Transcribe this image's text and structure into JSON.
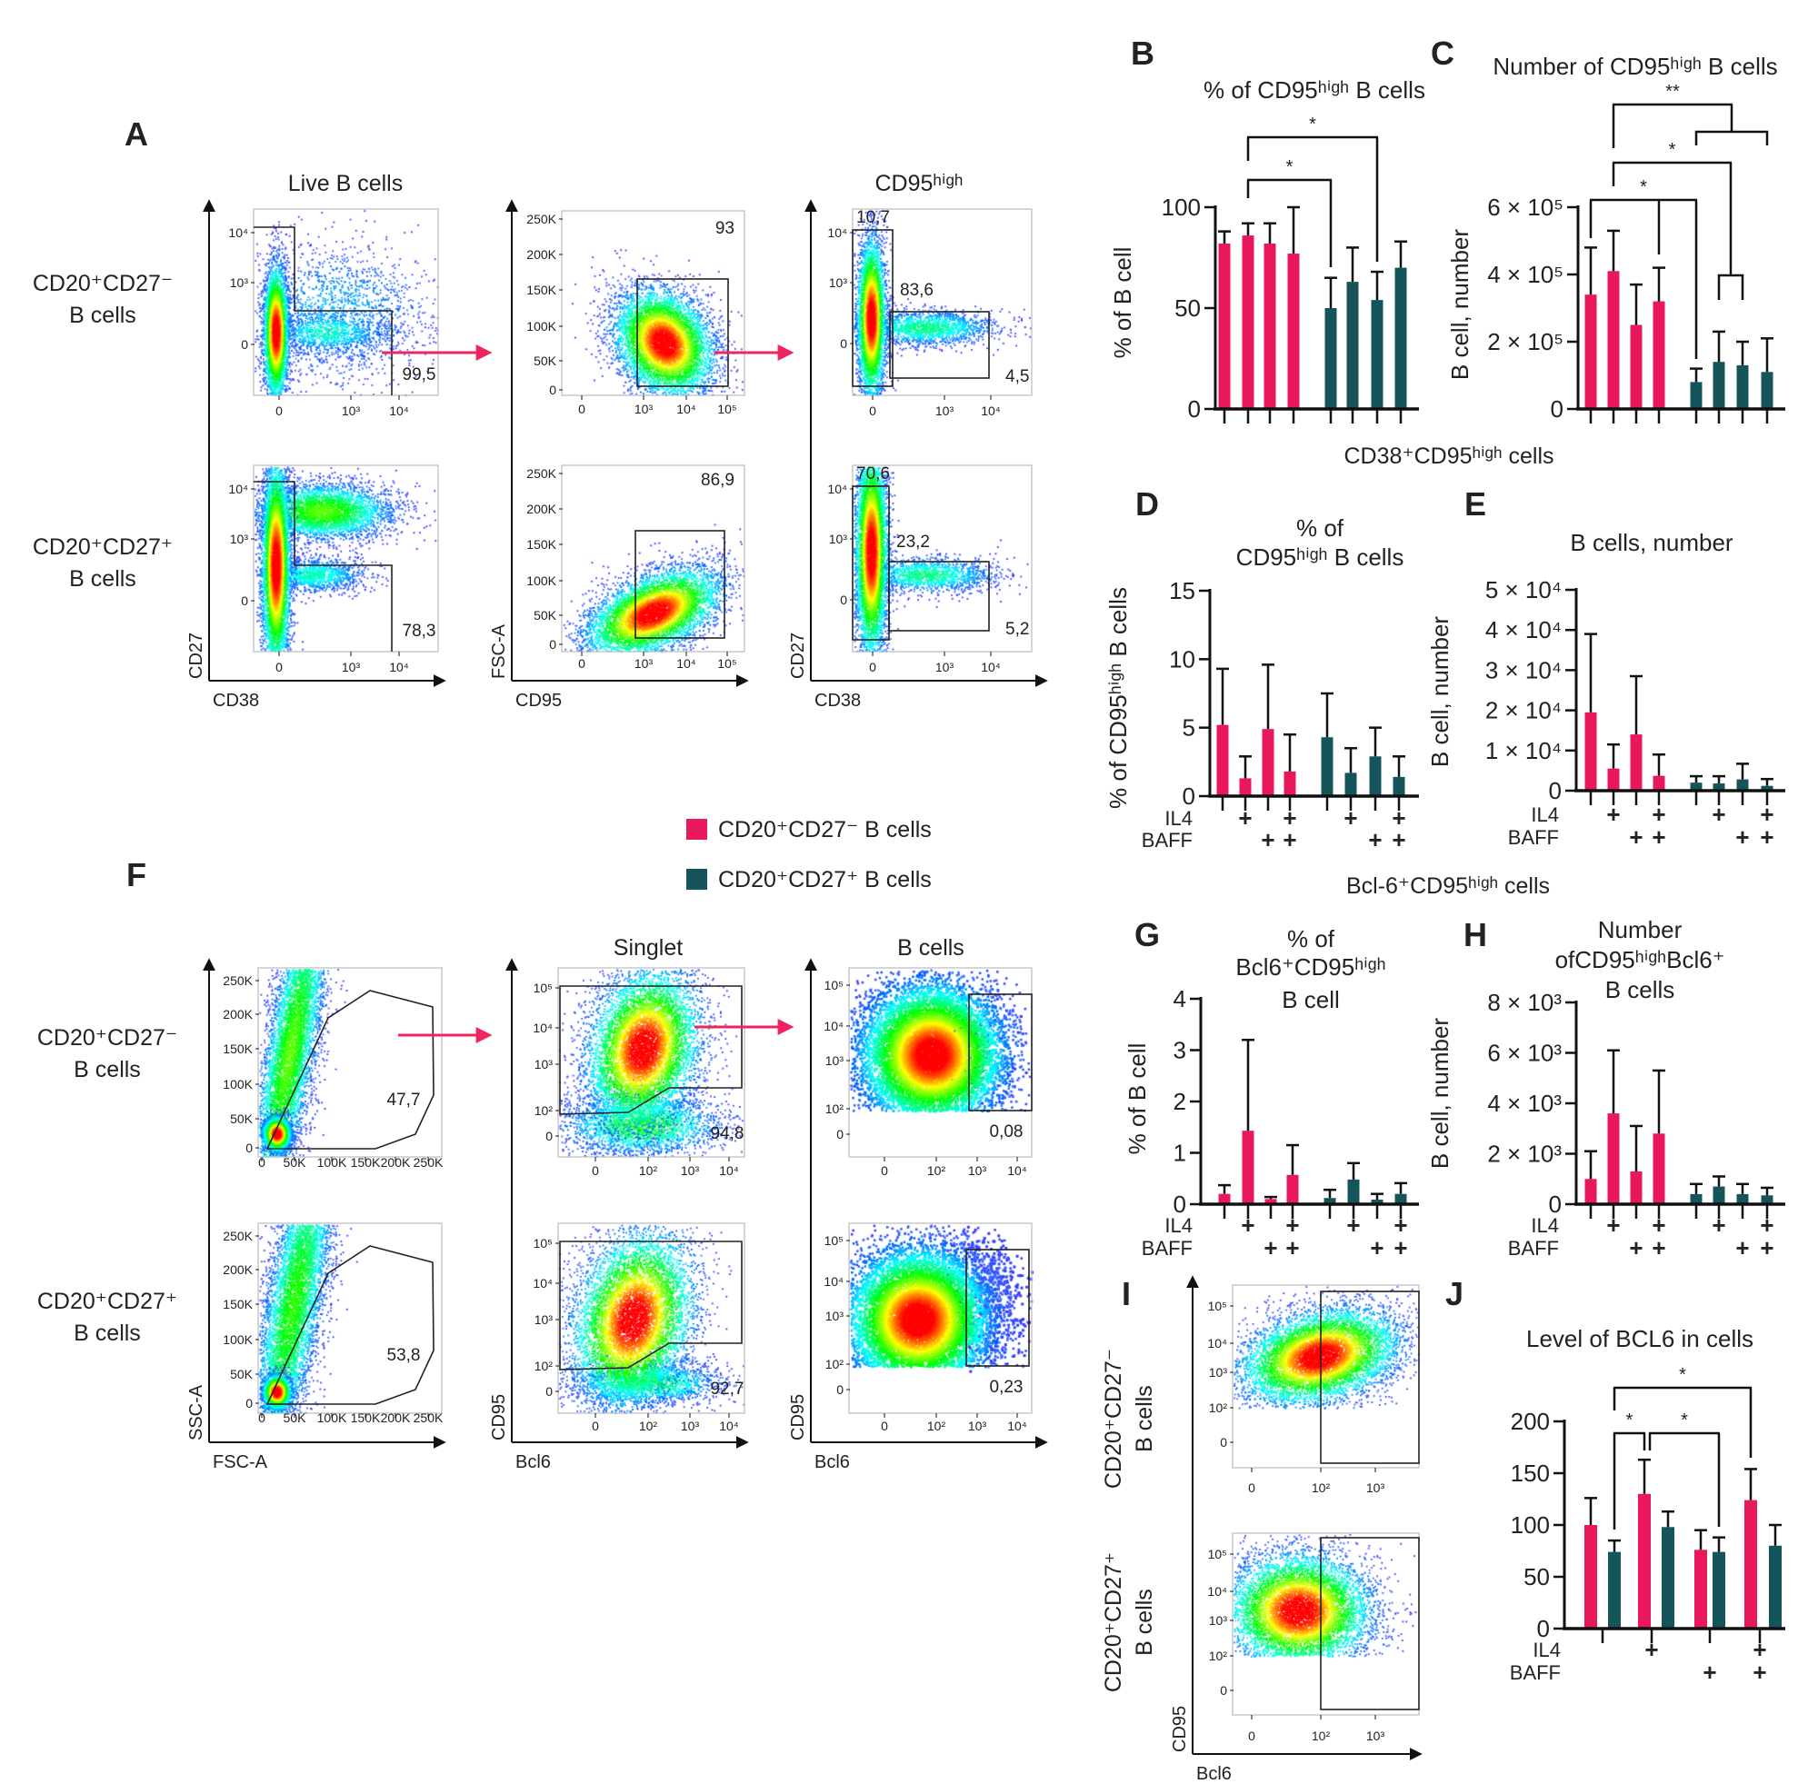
{
  "panel_labels": {
    "A": "A",
    "B": "B",
    "C": "C",
    "D": "D",
    "E": "E",
    "F": "F",
    "G": "G",
    "H": "H",
    "I": "I",
    "J": "J"
  },
  "legend": [
    {
      "label": "CD20⁺CD27⁻ B cells",
      "color": "#e8185a"
    },
    {
      "label": "CD20⁺CD27⁺ B cells",
      "color": "#14545a"
    }
  ],
  "section_titles": {
    "cd38": "CD38⁺CD95ʰⁱᵍʰ cells",
    "bcl6": "Bcl-6⁺CD95ʰⁱᵍʰ cells"
  },
  "panel_a": {
    "col_titles": [
      "Live B cells",
      "CD95ʰⁱᵍʰ"
    ],
    "row_labels": [
      [
        "CD20⁺CD27⁻",
        "B cells"
      ],
      [
        "CD20⁺CD27⁺",
        "B cells"
      ]
    ],
    "axis_labels": [
      {
        "x": "CD38",
        "y": "CD27"
      },
      {
        "x": "CD95",
        "y": "FSC-A"
      },
      {
        "x": "CD38",
        "y": "CD27"
      }
    ],
    "tick_labels": [
      {
        "x": [
          "0",
          "10³",
          "10⁴"
        ],
        "y": [
          "10⁴",
          "10³",
          "0"
        ]
      },
      {
        "x": [
          "0",
          "10³",
          "10⁴",
          "10⁵"
        ],
        "y": [
          "250K",
          "200K",
          "150K",
          "100K",
          "50K",
          "0"
        ]
      },
      {
        "x": [
          "0",
          "10³",
          "10⁴"
        ],
        "y": [
          "10⁴",
          "10³",
          "0"
        ]
      }
    ],
    "gate_values": [
      [
        [
          "99,5"
        ],
        [
          "93"
        ],
        [
          "10,7",
          "83,6",
          "4,5"
        ]
      ],
      [
        [
          "78,3"
        ],
        [
          "86,9"
        ],
        [
          "70,6",
          "23,2",
          "5,2"
        ]
      ]
    ]
  },
  "panel_f": {
    "col_titles": [
      "Singlet",
      "B cells"
    ],
    "row_labels": [
      [
        "CD20⁺CD27⁻",
        "B cells"
      ],
      [
        "CD20⁺CD27⁺",
        "B cells"
      ]
    ],
    "axis_labels": [
      {
        "x": "FSC-A",
        "y": "SSC-A"
      },
      {
        "x": "Bcl6",
        "y": "CD95"
      },
      {
        "x": "Bcl6",
        "y": "CD95"
      }
    ],
    "tick_labels": [
      {
        "x": [
          "0",
          "50K",
          "100K",
          "150K",
          "200K",
          "250K"
        ],
        "y": [
          "250K",
          "200K",
          "150K",
          "100K",
          "50K",
          "0"
        ]
      },
      {
        "x": [
          "0",
          "10²",
          "10³",
          "10⁴"
        ],
        "y": [
          "10⁵",
          "10⁴",
          "10³",
          "10²",
          "0"
        ]
      },
      {
        "x": [
          "0",
          "10²",
          "10³",
          "10⁴"
        ],
        "y": [
          "10⁵",
          "10⁴",
          "10³",
          "10²",
          "0"
        ]
      }
    ],
    "gate_values": [
      [
        [
          "47,7"
        ],
        [
          "94,8"
        ],
        [
          "0,08"
        ]
      ],
      [
        [
          "53,8"
        ],
        [
          "92,7"
        ],
        [
          "0,23"
        ]
      ]
    ]
  },
  "panel_i": {
    "row_labels": [
      [
        "CD20⁺CD27⁻",
        "B cells"
      ],
      [
        "CD20⁺CD27⁺",
        "B cells"
      ]
    ],
    "axis_labels": {
      "x": "Bcl6",
      "y": "CD95"
    },
    "tick_labels": {
      "x": [
        "0",
        "10²",
        "10³"
      ],
      "y": [
        "10⁵",
        "10⁴",
        "10³",
        "10²",
        "0"
      ]
    }
  },
  "chart_data": [
    {
      "panel": "B",
      "type": "bar",
      "title": [
        "% of CD95ʰⁱᵍʰ B cells"
      ],
      "ylabel": "% of B cell",
      "ylim": [
        0,
        100
      ],
      "yticks": [
        0,
        50,
        100
      ],
      "ytick_labels": [
        "0",
        "50",
        "100"
      ],
      "grouped_by": "cell_type",
      "show_conditions": false,
      "conditions": [
        {
          "IL4": false,
          "BAFF": false
        },
        {
          "IL4": true,
          "BAFF": false
        },
        {
          "IL4": false,
          "BAFF": true
        },
        {
          "IL4": true,
          "BAFF": true
        }
      ],
      "series": [
        {
          "name": "CD20⁺CD27⁻ B cells",
          "color": "#e8185a",
          "values": [
            82,
            86,
            82,
            77
          ],
          "error_upper": [
            88,
            92,
            92,
            100
          ]
        },
        {
          "name": "CD20⁺CD27⁺ B cells",
          "color": "#14545a",
          "values": [
            50,
            63,
            54,
            70
          ],
          "error_upper": [
            65,
            80,
            68,
            83
          ]
        }
      ],
      "significance": [
        {
          "label": "*"
        },
        {
          "label": "*"
        }
      ]
    },
    {
      "panel": "C",
      "type": "bar",
      "title": [
        "Number of CD95ʰⁱᵍʰ B cells"
      ],
      "ylabel": "B cell, number",
      "ylim": [
        0,
        600000
      ],
      "yticks": [
        0,
        200000,
        400000,
        600000
      ],
      "ytick_labels": [
        "0",
        "2 × 10⁵",
        "4 × 10⁵",
        "6 × 10⁵"
      ],
      "grouped_by": "cell_type",
      "show_conditions": false,
      "conditions": [
        {
          "IL4": false,
          "BAFF": false
        },
        {
          "IL4": true,
          "BAFF": false
        },
        {
          "IL4": false,
          "BAFF": true
        },
        {
          "IL4": true,
          "BAFF": true
        }
      ],
      "series": [
        {
          "name": "CD20⁺CD27⁻ B cells",
          "color": "#e8185a",
          "values": [
            340000,
            410000,
            250000,
            320000
          ],
          "error_upper": [
            480000,
            530000,
            370000,
            420000
          ]
        },
        {
          "name": "CD20⁺CD27⁺ B cells",
          "color": "#14545a",
          "values": [
            80000,
            140000,
            130000,
            110000
          ],
          "error_upper": [
            120000,
            230000,
            200000,
            210000
          ]
        }
      ],
      "significance": [
        {
          "label": "**"
        },
        {
          "label": "*"
        },
        {
          "label": "*"
        }
      ]
    },
    {
      "panel": "D",
      "type": "bar",
      "title": [
        "% of",
        "CD95ʰⁱᵍʰ B cells"
      ],
      "ylabel": "% of CD95ʰⁱᵍʰ B cells",
      "ylim": [
        0,
        15
      ],
      "yticks": [
        0,
        5,
        10,
        15
      ],
      "ytick_labels": [
        "0",
        "5",
        "10",
        "15"
      ],
      "grouped_by": "cell_type",
      "show_conditions": true,
      "condition_labels": [
        "IL4",
        "BAFF"
      ],
      "plus": "+",
      "conditions": [
        {
          "IL4": false,
          "BAFF": false
        },
        {
          "IL4": true,
          "BAFF": false
        },
        {
          "IL4": false,
          "BAFF": true
        },
        {
          "IL4": true,
          "BAFF": true
        }
      ],
      "series": [
        {
          "name": "CD20⁺CD27⁻ B cells",
          "color": "#e8185a",
          "values": [
            5.2,
            1.3,
            4.9,
            1.8
          ],
          "error_upper": [
            9.3,
            2.9,
            9.6,
            4.5
          ]
        },
        {
          "name": "CD20⁺CD27⁺ B cells",
          "color": "#14545a",
          "values": [
            4.3,
            1.7,
            2.9,
            1.4
          ],
          "error_upper": [
            7.5,
            3.5,
            5.0,
            2.9
          ]
        }
      ],
      "significance": []
    },
    {
      "panel": "E",
      "type": "bar",
      "title": [
        "B cells, number"
      ],
      "ylabel": "B cell, number",
      "ylim": [
        0,
        50000
      ],
      "yticks": [
        0,
        10000,
        20000,
        30000,
        40000,
        50000
      ],
      "ytick_labels": [
        "0",
        "1 × 10⁴",
        "2 × 10⁴",
        "3 × 10⁴",
        "4 × 10⁴",
        "5 × 10⁴"
      ],
      "grouped_by": "cell_type",
      "show_conditions": true,
      "condition_labels": [
        "IL4",
        "BAFF"
      ],
      "plus": "+",
      "conditions": [
        {
          "IL4": false,
          "BAFF": false
        },
        {
          "IL4": true,
          "BAFF": false
        },
        {
          "IL4": false,
          "BAFF": true
        },
        {
          "IL4": true,
          "BAFF": true
        }
      ],
      "series": [
        {
          "name": "CD20⁺CD27⁻ B cells",
          "color": "#e8185a",
          "values": [
            19500,
            5500,
            14000,
            3700
          ],
          "error_upper": [
            39000,
            11500,
            28500,
            9000
          ]
        },
        {
          "name": "CD20⁺CD27⁺ B cells",
          "color": "#14545a",
          "values": [
            2000,
            1800,
            2800,
            1200
          ],
          "error_upper": [
            3600,
            3600,
            6700,
            2900
          ]
        }
      ],
      "significance": []
    },
    {
      "panel": "G",
      "type": "bar",
      "title": [
        "% of",
        "Bcl6⁺CD95ʰⁱᵍʰ",
        "B cell"
      ],
      "ylabel": "% of B cell",
      "ylim": [
        0,
        4
      ],
      "yticks": [
        0,
        1,
        2,
        3,
        4
      ],
      "ytick_labels": [
        "0",
        "1",
        "2",
        "3",
        "4"
      ],
      "grouped_by": "cell_type",
      "show_conditions": true,
      "condition_labels": [
        "IL4",
        "BAFF"
      ],
      "plus": "+",
      "conditions": [
        {
          "IL4": false,
          "BAFF": false
        },
        {
          "IL4": true,
          "BAFF": false
        },
        {
          "IL4": false,
          "BAFF": true
        },
        {
          "IL4": true,
          "BAFF": true
        }
      ],
      "series": [
        {
          "name": "CD20⁺CD27⁻ B cells",
          "color": "#e8185a",
          "values": [
            0.2,
            1.43,
            0.1,
            0.57
          ],
          "error_upper": [
            0.37,
            3.2,
            0.14,
            1.15
          ]
        },
        {
          "name": "CD20⁺CD27⁺ B cells",
          "color": "#14545a",
          "values": [
            0.12,
            0.48,
            0.09,
            0.2
          ],
          "error_upper": [
            0.28,
            0.8,
            0.2,
            0.41
          ]
        }
      ],
      "significance": []
    },
    {
      "panel": "H",
      "type": "bar",
      "title": [
        "Number",
        "ofCD95ʰⁱᵍʰBcl6⁺",
        "B cells"
      ],
      "ylabel": "B cell, number",
      "ylim": [
        0,
        8000
      ],
      "yticks": [
        0,
        2000,
        4000,
        6000,
        8000
      ],
      "ytick_labels": [
        "0",
        "2 × 10³",
        "4 × 10³",
        "6 × 10³",
        "8 × 10³"
      ],
      "grouped_by": "cell_type",
      "show_conditions": true,
      "condition_labels": [
        "IL4",
        "BAFF"
      ],
      "plus": "+",
      "conditions": [
        {
          "IL4": false,
          "BAFF": false
        },
        {
          "IL4": true,
          "BAFF": false
        },
        {
          "IL4": false,
          "BAFF": true
        },
        {
          "IL4": true,
          "BAFF": true
        }
      ],
      "series": [
        {
          "name": "CD20⁺CD27⁻ B cells",
          "color": "#e8185a",
          "values": [
            1000,
            3600,
            1300,
            2800
          ],
          "error_upper": [
            2100,
            6100,
            3100,
            5300
          ]
        },
        {
          "name": "CD20⁺CD27⁺ B cells",
          "color": "#14545a",
          "values": [
            400,
            700,
            400,
            350
          ],
          "error_upper": [
            800,
            1100,
            800,
            650
          ]
        }
      ],
      "significance": []
    },
    {
      "panel": "J",
      "type": "bar",
      "title": [
        "Level of BCL6 in cells"
      ],
      "ylabel": "",
      "ylim": [
        0,
        200
      ],
      "yticks": [
        0,
        50,
        100,
        150,
        200
      ],
      "ytick_labels": [
        "0",
        "50",
        "100",
        "150",
        "200"
      ],
      "grouped_by": "condition",
      "show_conditions": true,
      "condition_labels": [
        "IL4",
        "BAFF"
      ],
      "plus": "+",
      "conditions": [
        {
          "IL4": false,
          "BAFF": false
        },
        {
          "IL4": true,
          "BAFF": false
        },
        {
          "IL4": false,
          "BAFF": true
        },
        {
          "IL4": true,
          "BAFF": true
        }
      ],
      "series": [
        {
          "name": "CD20⁺CD27⁻ B cells",
          "color": "#e8185a",
          "values": [
            100,
            130,
            76,
            124
          ],
          "error_upper": [
            126,
            163,
            95,
            154
          ]
        },
        {
          "name": "CD20⁺CD27⁺ B cells",
          "color": "#14545a",
          "values": [
            74,
            98,
            74,
            80
          ],
          "error_upper": [
            85,
            113,
            88,
            100
          ]
        }
      ],
      "significance": [
        {
          "label": "*"
        },
        {
          "label": "*"
        },
        {
          "label": "*"
        }
      ]
    }
  ]
}
